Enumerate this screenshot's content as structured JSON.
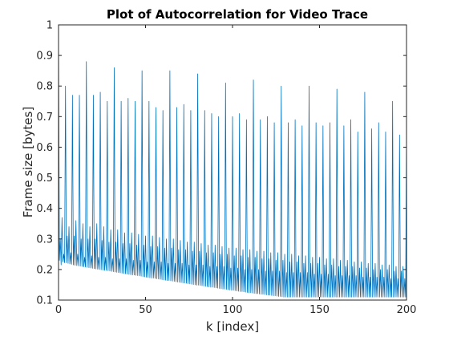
{
  "chart_data": {
    "type": "line",
    "title": "Plot of Autocorrelation for Video Trace",
    "xlabel": "k [index]",
    "ylabel": "Frame size [bytes]",
    "xlim": [
      0,
      200
    ],
    "ylim": [
      0.1,
      1
    ],
    "xticks": [
      "0",
      "50",
      "100",
      "150",
      "200"
    ],
    "yticks": [
      "0.1",
      "0.2",
      "0.3",
      "0.4",
      "0.5",
      "0.6",
      "0.7",
      "0.8",
      "0.9",
      "1"
    ],
    "grid": false,
    "series": [
      {
        "color": "#0072bd",
        "x": [
          0,
          0.5,
          1,
          1.5,
          2,
          2.5,
          3,
          3.5,
          4,
          4.5,
          5,
          5.5,
          6,
          6.5,
          7,
          7.5,
          8,
          8.5,
          9,
          9.5,
          10,
          10.5,
          11,
          11.5,
          12,
          12.5,
          13,
          13.5,
          14,
          14.5,
          15,
          15.5,
          16,
          16.5,
          17,
          17.5,
          18,
          18.5,
          19,
          19.5,
          20,
          20.5,
          21,
          21.5,
          22,
          22.5,
          23,
          23.5,
          24,
          24.5,
          25,
          25.5,
          26,
          26.5,
          27,
          27.5,
          28,
          28.5,
          29,
          29.5,
          30,
          30.5,
          31,
          31.5,
          32,
          32.5,
          33,
          33.5,
          34,
          34.5,
          35,
          35.5,
          36,
          36.5,
          37,
          37.5,
          38,
          38.5,
          39,
          39.5,
          40,
          40.5,
          41,
          41.5,
          42,
          42.5,
          43,
          43.5,
          44,
          44.5,
          45,
          45.5,
          46,
          46.5,
          47,
          47.5,
          48,
          48.5,
          49,
          49.5,
          50,
          50.5,
          51,
          51.5,
          52,
          52.5,
          53,
          53.5,
          54,
          54.5,
          55,
          55.5,
          56,
          56.5,
          57,
          57.5,
          58,
          58.5,
          59,
          59.5,
          60,
          60.5,
          61,
          61.5,
          62,
          62.5,
          63,
          63.5,
          64,
          64.5,
          65,
          65.5,
          66,
          66.5,
          67,
          67.5,
          68,
          68.5,
          69,
          69.5,
          70,
          70.5,
          71,
          71.5,
          72,
          72.5,
          73,
          73.5,
          74,
          74.5,
          75,
          75.5,
          76,
          76.5,
          77,
          77.5,
          78,
          78.5,
          79,
          79.5,
          80,
          80.5,
          81,
          81.5,
          82,
          82.5,
          83,
          83.5,
          84,
          84.5,
          85,
          85.5,
          86,
          86.5,
          87,
          87.5,
          88,
          88.5,
          89,
          89.5,
          90,
          90.5,
          91,
          91.5,
          92,
          92.5,
          93,
          93.5,
          94,
          94.5,
          95,
          95.5,
          96,
          96.5,
          97,
          97.5,
          98,
          98.5,
          99,
          99.5,
          100,
          100.5,
          101,
          101.5,
          102,
          102.5,
          103,
          103.5,
          104,
          104.5,
          105,
          105.5,
          106,
          106.5,
          107,
          107.5,
          108,
          108.5,
          109,
          109.5,
          110,
          110.5,
          111,
          111.5,
          112,
          112.5,
          113,
          113.5,
          114,
          114.5,
          115,
          115.5,
          116,
          116.5,
          117,
          117.5,
          118,
          118.5,
          119,
          119.5,
          120,
          120.5,
          121,
          121.5,
          122,
          122.5,
          123,
          123.5,
          124,
          124.5,
          125,
          125.5,
          126,
          126.5,
          127,
          127.5,
          128,
          128.5,
          129,
          129.5,
          130,
          130.5,
          131,
          131.5,
          132,
          132.5,
          133,
          133.5,
          134,
          134.5,
          135,
          135.5,
          136,
          136.5,
          137,
          137.5,
          138,
          138.5,
          139,
          139.5,
          140,
          140.5,
          141,
          141.5,
          142,
          142.5,
          143,
          143.5,
          144,
          144.5,
          145,
          145.5,
          146,
          146.5,
          147,
          147.5,
          148,
          148.5,
          149,
          149.5,
          150,
          150.5,
          151,
          151.5,
          152,
          152.5,
          153,
          153.5,
          154,
          154.5,
          155,
          155.5,
          156,
          156.5,
          157,
          157.5,
          158,
          158.5,
          159,
          159.5,
          160,
          160.5,
          161,
          161.5,
          162,
          162.5,
          163,
          163.5,
          164,
          164.5,
          165,
          165.5,
          166,
          166.5,
          167,
          167.5,
          168,
          168.5,
          169,
          169.5,
          170,
          170.5,
          171,
          171.5,
          172,
          172.5,
          173,
          173.5,
          174,
          174.5,
          175,
          175.5,
          176,
          176.5,
          177,
          177.5,
          178,
          178.5,
          179,
          179.5,
          180,
          180.5,
          181,
          181.5,
          182,
          182.5,
          183,
          183.5,
          184,
          184.5,
          185,
          185.5,
          186,
          186.5,
          187,
          187.5,
          188,
          188.5,
          189,
          189.5,
          190,
          190.5,
          191,
          191.5,
          192,
          192.5,
          193,
          193.5,
          194,
          194.5,
          195,
          195.5,
          196,
          196.5,
          197,
          197.5,
          198,
          198.5,
          199,
          199.5,
          200
        ],
        "y": [
          1,
          0.23,
          0.3,
          0.215,
          0.37,
          0.225,
          0.25,
          0.222,
          0.8,
          0.222,
          0.31,
          0.22,
          0.34,
          0.218,
          0.255,
          0.217,
          0.77,
          0.215,
          0.31,
          0.214,
          0.36,
          0.213,
          0.25,
          0.212,
          0.77,
          0.211,
          0.3,
          0.21,
          0.35,
          0.209,
          0.24,
          0.208,
          0.88,
          0.207,
          0.3,
          0.206,
          0.34,
          0.205,
          0.245,
          0.204,
          0.77,
          0.203,
          0.3,
          0.202,
          0.35,
          0.201,
          0.24,
          0.2,
          0.78,
          0.199,
          0.295,
          0.198,
          0.34,
          0.197,
          0.24,
          0.197,
          0.75,
          0.196,
          0.29,
          0.195,
          0.33,
          0.194,
          0.235,
          0.193,
          0.86,
          0.192,
          0.29,
          0.191,
          0.33,
          0.19,
          0.235,
          0.189,
          0.75,
          0.188,
          0.285,
          0.187,
          0.32,
          0.186,
          0.235,
          0.185,
          0.76,
          0.184,
          0.285,
          0.183,
          0.32,
          0.182,
          0.23,
          0.182,
          0.75,
          0.181,
          0.28,
          0.18,
          0.315,
          0.179,
          0.23,
          0.178,
          0.85,
          0.177,
          0.28,
          0.176,
          0.31,
          0.175,
          0.225,
          0.174,
          0.75,
          0.173,
          0.275,
          0.172,
          0.31,
          0.172,
          0.225,
          0.171,
          0.73,
          0.17,
          0.275,
          0.169,
          0.305,
          0.168,
          0.225,
          0.167,
          0.72,
          0.166,
          0.27,
          0.165,
          0.3,
          0.164,
          0.22,
          0.164,
          0.85,
          0.163,
          0.27,
          0.162,
          0.3,
          0.161,
          0.22,
          0.16,
          0.73,
          0.159,
          0.265,
          0.158,
          0.295,
          0.157,
          0.22,
          0.156,
          0.74,
          0.156,
          0.265,
          0.155,
          0.29,
          0.154,
          0.215,
          0.153,
          0.72,
          0.152,
          0.26,
          0.151,
          0.29,
          0.15,
          0.215,
          0.149,
          0.84,
          0.149,
          0.26,
          0.148,
          0.285,
          0.147,
          0.215,
          0.146,
          0.72,
          0.145,
          0.255,
          0.144,
          0.28,
          0.143,
          0.21,
          0.142,
          0.71,
          0.142,
          0.255,
          0.141,
          0.28,
          0.14,
          0.21,
          0.139,
          0.7,
          0.138,
          0.25,
          0.137,
          0.275,
          0.136,
          0.21,
          0.136,
          0.81,
          0.135,
          0.25,
          0.134,
          0.27,
          0.133,
          0.205,
          0.132,
          0.7,
          0.132,
          0.245,
          0.131,
          0.27,
          0.13,
          0.205,
          0.129,
          0.71,
          0.128,
          0.245,
          0.128,
          0.265,
          0.127,
          0.2,
          0.126,
          0.69,
          0.125,
          0.24,
          0.124,
          0.265,
          0.124,
          0.2,
          0.123,
          0.82,
          0.122,
          0.24,
          0.121,
          0.26,
          0.121,
          0.2,
          0.12,
          0.69,
          0.119,
          0.235,
          0.119,
          0.26,
          0.118,
          0.195,
          0.117,
          0.7,
          0.116,
          0.235,
          0.116,
          0.255,
          0.115,
          0.195,
          0.114,
          0.68,
          0.114,
          0.23,
          0.113,
          0.255,
          0.112,
          0.195,
          0.112,
          0.8,
          0.111,
          0.23,
          0.11,
          0.25,
          0.11,
          0.19,
          0.11,
          0.68,
          0.11,
          0.225,
          0.11,
          0.25,
          0.11,
          0.19,
          0.11,
          0.69,
          0.11,
          0.225,
          0.11,
          0.245,
          0.11,
          0.19,
          0.11,
          0.67,
          0.11,
          0.22,
          0.11,
          0.245,
          0.11,
          0.19,
          0.11,
          0.8,
          0.11,
          0.22,
          0.11,
          0.24,
          0.11,
          0.185,
          0.11,
          0.68,
          0.11,
          0.22,
          0.11,
          0.24,
          0.11,
          0.185,
          0.11,
          0.67,
          0.11,
          0.215,
          0.11,
          0.235,
          0.11,
          0.185,
          0.11,
          0.68,
          0.11,
          0.215,
          0.11,
          0.235,
          0.11,
          0.18,
          0.11,
          0.79,
          0.11,
          0.21,
          0.11,
          0.23,
          0.11,
          0.18,
          0.11,
          0.67,
          0.11,
          0.21,
          0.11,
          0.23,
          0.11,
          0.18,
          0.11,
          0.69,
          0.11,
          0.21,
          0.11,
          0.225,
          0.11,
          0.18,
          0.11,
          0.65,
          0.11,
          0.205,
          0.11,
          0.225,
          0.11,
          0.175,
          0.11,
          0.78,
          0.11,
          0.205,
          0.11,
          0.22,
          0.11,
          0.175,
          0.11,
          0.66,
          0.11,
          0.2,
          0.11,
          0.22,
          0.11,
          0.175,
          0.11,
          0.68,
          0.11,
          0.2,
          0.11,
          0.215,
          0.11,
          0.175,
          0.11,
          0.65,
          0.11,
          0.2,
          0.11,
          0.215,
          0.11,
          0.17,
          0.11,
          0.75,
          0.11,
          0.195,
          0.11,
          0.21,
          0.11,
          0.17,
          0.11,
          0.64,
          0.11,
          0.195,
          0.11,
          0.21,
          0.11,
          0.17,
          0.11,
          0.64
        ]
      }
    ]
  }
}
